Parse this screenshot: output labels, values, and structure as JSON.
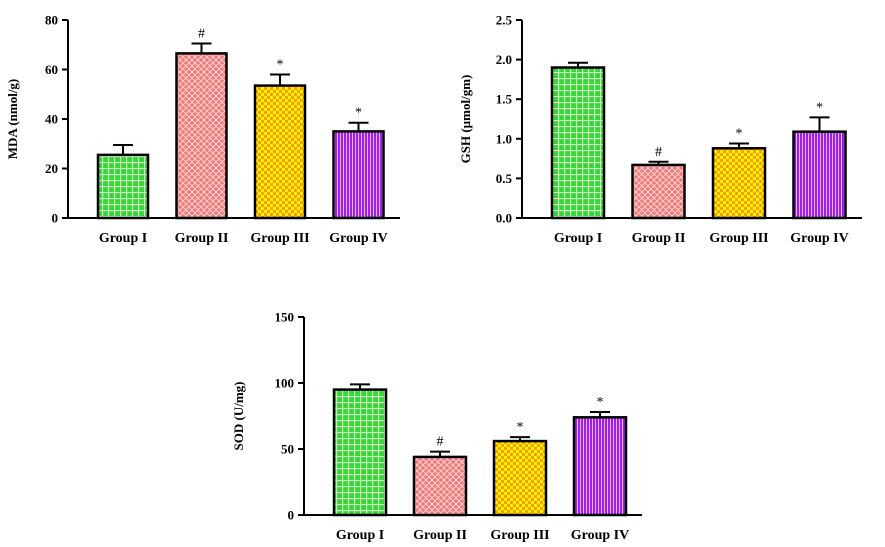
{
  "chart_data": [
    {
      "type": "bar",
      "id": "mda",
      "title": "",
      "xlabel": "",
      "ylabel": "MDA (nmol/g)",
      "categories": [
        "Group I",
        "Group II",
        "Group III",
        "Group IV"
      ],
      "values": [
        25.5,
        66.5,
        53.5,
        35.0
      ],
      "errors": [
        4,
        4,
        4.5,
        3.5
      ],
      "significance": [
        "",
        "#",
        "*",
        "*"
      ],
      "ylim": [
        0,
        80
      ],
      "yticks": [
        "0",
        "20",
        "40",
        "60",
        "80"
      ],
      "grid": false
    },
    {
      "type": "bar",
      "id": "gsh",
      "title": "",
      "xlabel": "",
      "ylabel": "GSH (µmol/gm)",
      "categories": [
        "Group I",
        "Group II",
        "Group III",
        "Group IV"
      ],
      "values": [
        1.9,
        0.67,
        0.88,
        1.09
      ],
      "errors": [
        0.06,
        0.04,
        0.06,
        0.18
      ],
      "significance": [
        "",
        "#",
        "*",
        "*"
      ],
      "ylim": [
        0,
        2.5
      ],
      "yticks": [
        "0.0",
        "0.5",
        "1.0",
        "1.5",
        "2.0",
        "2.5"
      ],
      "grid": false
    },
    {
      "type": "bar",
      "id": "sod",
      "title": "",
      "xlabel": "",
      "ylabel": "SOD (U/mg)",
      "categories": [
        "Group I",
        "Group II",
        "Group III",
        "Group IV"
      ],
      "values": [
        95,
        44,
        56,
        74
      ],
      "errors": [
        4,
        4,
        3,
        4
      ],
      "significance": [
        "",
        "#",
        "*",
        "*"
      ],
      "ylim": [
        0,
        150
      ],
      "yticks": [
        "0",
        "50",
        "100",
        "150"
      ],
      "grid": false
    }
  ],
  "bar_styles": [
    {
      "fill": "#3ad43a",
      "pattern_color": "#c8f5c0",
      "pattern": "grid"
    },
    {
      "fill": "#f07878",
      "pattern_color": "#fbd0d0",
      "pattern": "crosshatch"
    },
    {
      "fill": "#f5a000",
      "pattern_color": "#fff200",
      "pattern": "checker"
    },
    {
      "fill": "#a020e0",
      "pattern_color": "#e2b0ff",
      "pattern": "vertical"
    }
  ]
}
